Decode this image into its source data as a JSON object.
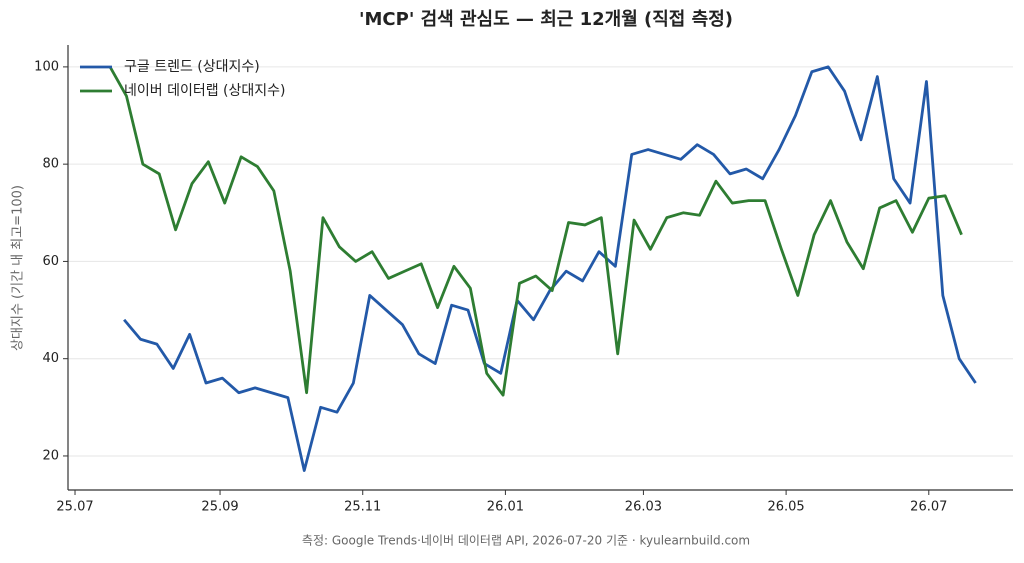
{
  "chart_data": {
    "type": "line",
    "title": "'MCP' 검색 관심도 — 최근 12개월 (직접 측정)",
    "ylabel": "상대지수 (기간 내 최고=100)",
    "footnote": "측정: Google Trends·네이버 데이터랩 API, 2026-07-20 기준 · kyulearnbuild.com",
    "xlim": [
      -3,
      401
    ],
    "ylim": [
      13,
      104.5
    ],
    "xticks": [
      {
        "value": 0,
        "label": "25.07"
      },
      {
        "value": 62,
        "label": "25.09"
      },
      {
        "value": 123,
        "label": "25.11"
      },
      {
        "value": 184,
        "label": "26.01"
      },
      {
        "value": 243,
        "label": "26.03"
      },
      {
        "value": 304,
        "label": "26.05"
      },
      {
        "value": 365,
        "label": "26.07"
      }
    ],
    "yticks": [
      20,
      40,
      60,
      80,
      100
    ],
    "grid": true,
    "legend": "upper left",
    "series": [
      {
        "name": "구글 트렌드 (상대지수)",
        "color": "#2359a8",
        "x": [
          21,
          28,
          35,
          42,
          49,
          56,
          63,
          70,
          77,
          84,
          91,
          98,
          105,
          112,
          119,
          126,
          133,
          140,
          147,
          154,
          161,
          168,
          175,
          182,
          189,
          196,
          203,
          210,
          217,
          224,
          231,
          238,
          245,
          252,
          259,
          266,
          273,
          280,
          287,
          294,
          301,
          308,
          315,
          322,
          329,
          336,
          343,
          350,
          357,
          364,
          371,
          378,
          385
        ],
        "values": [
          48,
          44,
          43,
          38,
          45,
          35,
          36,
          33,
          34,
          33,
          32,
          17,
          30,
          29,
          35,
          53,
          50,
          47,
          41,
          39,
          51,
          50,
          39,
          37,
          52,
          48,
          54,
          58,
          56,
          62,
          59,
          82,
          83,
          82,
          81,
          84,
          82,
          78,
          79,
          77,
          83,
          90,
          99,
          100,
          95,
          85,
          98,
          77,
          72,
          97,
          53,
          40,
          35
        ]
      },
      {
        "name": "네이버 데이터랩 (상대지수)",
        "color": "#2e7d32",
        "x": [
          15,
          22,
          29,
          36,
          43,
          50,
          57,
          64,
          71,
          78,
          85,
          92,
          99,
          106,
          113,
          120,
          127,
          134,
          141,
          148,
          155,
          162,
          169,
          176,
          183,
          190,
          197,
          204,
          211,
          218,
          225,
          232,
          239,
          246,
          253,
          260,
          267,
          274,
          281,
          288,
          295,
          302,
          309,
          316,
          323,
          330,
          337,
          344,
          351,
          358,
          365,
          372,
          379
        ],
        "values": [
          100,
          94,
          80,
          78,
          66.5,
          76,
          80.5,
          72,
          81.5,
          79.5,
          74.5,
          58,
          33,
          69,
          63,
          60,
          62,
          56.5,
          58,
          59.5,
          50.5,
          59,
          54.5,
          37,
          32.5,
          55.5,
          57,
          54,
          68,
          67.5,
          69,
          41,
          68.5,
          62.5,
          69,
          70,
          69.5,
          76.5,
          72,
          72.5,
          72.5,
          62.5,
          53,
          65.5,
          72.5,
          64,
          58.5,
          71,
          72.5,
          66,
          73,
          73.5,
          65.5
        ]
      }
    ]
  }
}
